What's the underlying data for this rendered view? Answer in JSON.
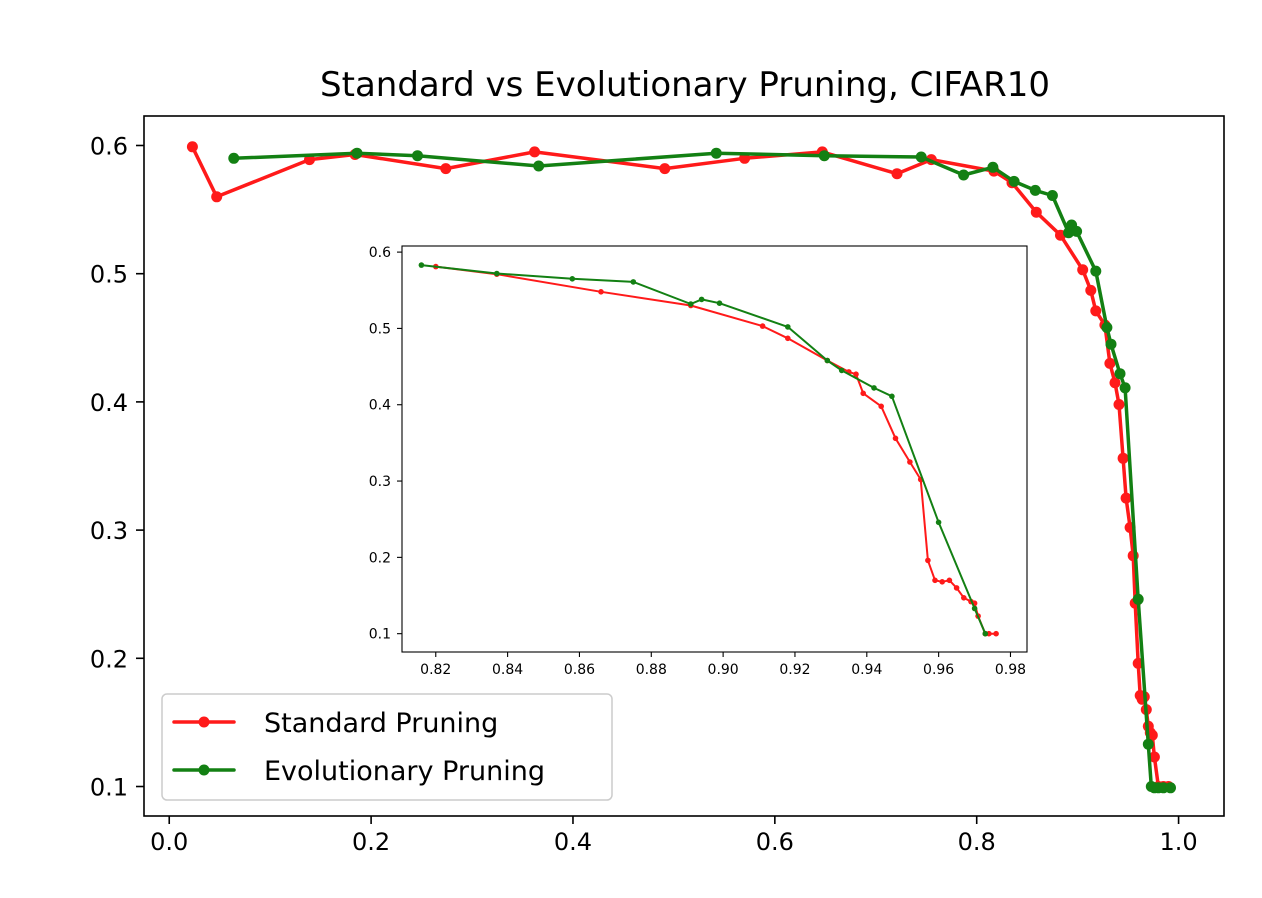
{
  "chart_data": {
    "type": "line",
    "title": "Standard vs Evolutionary Pruning, CIFAR10",
    "xlabel": "",
    "ylabel": "",
    "xlim": [
      -0.025,
      1.045
    ],
    "ylim": [
      0.077,
      0.623
    ],
    "x_ticks": [
      "0.0",
      "0.2",
      "0.4",
      "0.6",
      "0.8",
      "1.0"
    ],
    "y_ticks": [
      "0.1",
      "0.2",
      "0.3",
      "0.4",
      "0.5",
      "0.6"
    ],
    "legend": {
      "placement": "lower-left",
      "entries": [
        "Standard Pruning",
        "Evolutionary Pruning"
      ]
    },
    "series": [
      {
        "name": "Standard Pruning",
        "color": "#ff1a1a",
        "x": [
          0.023,
          0.047,
          0.139,
          0.184,
          0.274,
          0.362,
          0.491,
          0.57,
          0.647,
          0.721,
          0.755,
          0.817,
          0.835,
          0.859,
          0.883,
          0.905,
          0.913,
          0.918,
          0.927,
          0.932,
          0.937,
          0.941,
          0.945,
          0.948,
          0.952,
          0.955,
          0.957,
          0.96,
          0.962,
          0.964,
          0.966,
          0.968,
          0.97,
          0.972,
          0.974,
          0.976,
          0.98,
          0.985,
          0.99
        ],
        "y": [
          0.599,
          0.56,
          0.589,
          0.593,
          0.582,
          0.595,
          0.582,
          0.59,
          0.595,
          0.578,
          0.589,
          0.58,
          0.571,
          0.548,
          0.53,
          0.503,
          0.487,
          0.471,
          0.46,
          0.43,
          0.415,
          0.398,
          0.356,
          0.325,
          0.302,
          0.28,
          0.243,
          0.196,
          0.171,
          0.168,
          0.17,
          0.16,
          0.147,
          0.142,
          0.14,
          0.123,
          0.1,
          0.1,
          0.1
        ]
      },
      {
        "name": "Evolutionary Pruning",
        "color": "#138013",
        "x": [
          0.064,
          0.186,
          0.246,
          0.366,
          0.542,
          0.649,
          0.745,
          0.787,
          0.816,
          0.837,
          0.858,
          0.875,
          0.891,
          0.894,
          0.899,
          0.918,
          0.929,
          0.933,
          0.942,
          0.947,
          0.96,
          0.97,
          0.973,
          0.976,
          0.98,
          0.985,
          0.992
        ],
        "y": [
          0.59,
          0.594,
          0.592,
          0.584,
          0.594,
          0.592,
          0.591,
          0.577,
          0.583,
          0.572,
          0.565,
          0.561,
          0.532,
          0.538,
          0.533,
          0.502,
          0.458,
          0.445,
          0.422,
          0.411,
          0.246,
          0.133,
          0.1,
          0.099,
          0.099,
          0.099,
          0.099
        ]
      }
    ],
    "inset": {
      "type": "line",
      "xlim": [
        0.8106,
        0.9846
      ],
      "ylim": [
        0.076,
        0.608
      ],
      "x_ticks": [
        "0.82",
        "0.84",
        "0.86",
        "0.88",
        "0.90",
        "0.92",
        "0.94",
        "0.96",
        "0.98"
      ],
      "y_ticks": [
        "0.1",
        "0.2",
        "0.3",
        "0.4",
        "0.5",
        "0.6"
      ],
      "series": [
        {
          "name": "Standard Pruning",
          "color": "#ff1a1a",
          "x": [
            0.82,
            0.837,
            0.866,
            0.891,
            0.911,
            0.918,
            0.929,
            0.935,
            0.937,
            0.939,
            0.944,
            0.948,
            0.952,
            0.955,
            0.957,
            0.959,
            0.961,
            0.963,
            0.965,
            0.967,
            0.969,
            0.97,
            0.971,
            0.973,
            0.974,
            0.976
          ],
          "y": [
            0.581,
            0.571,
            0.548,
            0.53,
            0.503,
            0.487,
            0.458,
            0.443,
            0.44,
            0.415,
            0.398,
            0.356,
            0.325,
            0.302,
            0.196,
            0.17,
            0.168,
            0.17,
            0.16,
            0.147,
            0.142,
            0.14,
            0.123,
            0.1,
            0.1,
            0.1
          ]
        },
        {
          "name": "Evolutionary Pruning",
          "color": "#138013",
          "x": [
            0.816,
            0.837,
            0.858,
            0.875,
            0.891,
            0.894,
            0.899,
            0.918,
            0.929,
            0.933,
            0.942,
            0.947,
            0.96,
            0.97,
            0.973
          ],
          "y": [
            0.583,
            0.572,
            0.565,
            0.561,
            0.532,
            0.538,
            0.533,
            0.502,
            0.458,
            0.445,
            0.422,
            0.411,
            0.246,
            0.133,
            0.1
          ]
        }
      ]
    }
  }
}
